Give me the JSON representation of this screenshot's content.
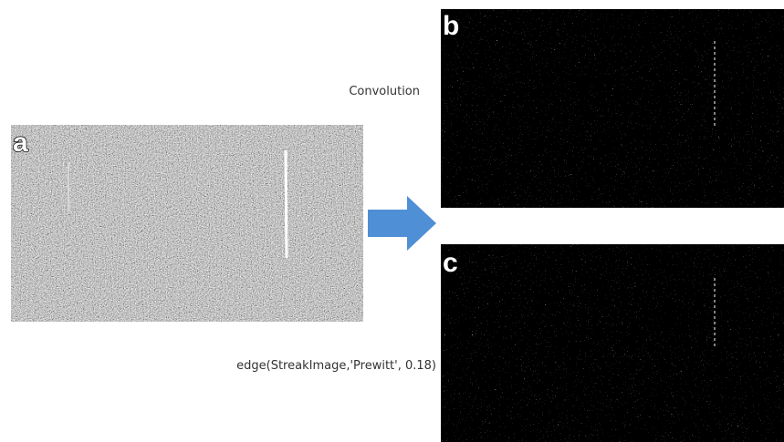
{
  "panels": [
    {
      "label": "a"
    },
    {
      "label": "b"
    },
    {
      "label": "c"
    }
  ],
  "captions": {
    "convolution": "Convolution",
    "edge": "edge(StreakImage,'Prewitt', 0.18)"
  }
}
